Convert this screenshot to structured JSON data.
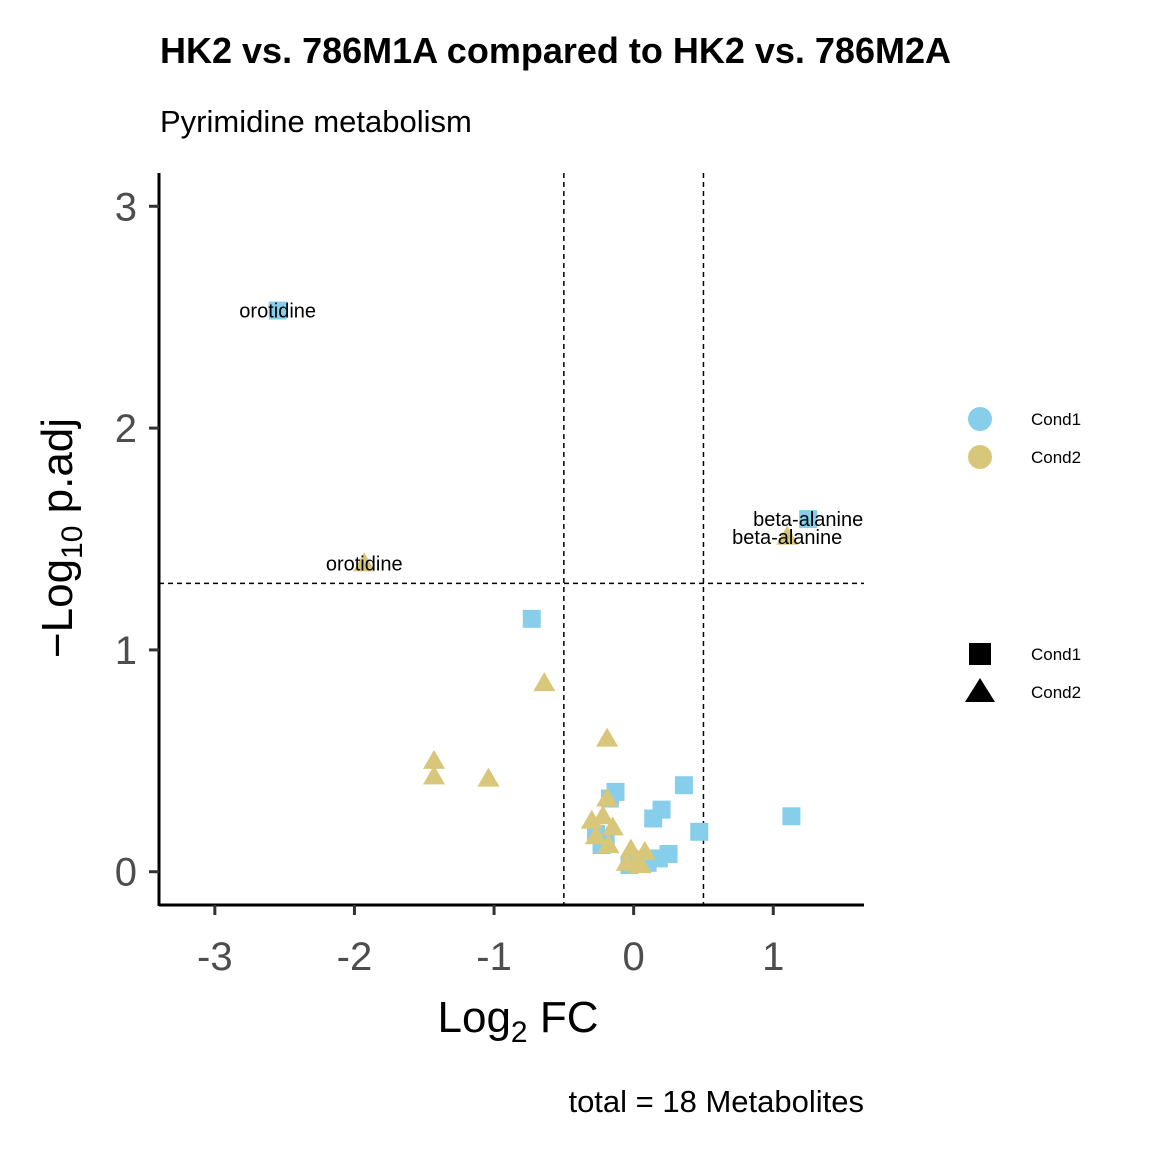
{
  "chart_data": {
    "type": "scatter",
    "title": "HK2 vs. 786M1A compared to HK2 vs. 786M2A",
    "subtitle": "Pyrimidine metabolism",
    "xlabel": {
      "prefix": "Log",
      "sub": "2",
      "suffix": " FC"
    },
    "ylabel": {
      "prefix": "−Log",
      "sub": "10",
      "suffix": " p.adj"
    },
    "xlim": [
      -3.4,
      1.65
    ],
    "ylim": [
      -0.15,
      3.15
    ],
    "x_ticks": [
      {
        "value": -3,
        "label": "-3"
      },
      {
        "value": -2,
        "label": "-2"
      },
      {
        "value": -1,
        "label": "-1"
      },
      {
        "value": 0,
        "label": "0"
      },
      {
        "value": 1,
        "label": "1"
      }
    ],
    "y_ticks": [
      {
        "value": 0,
        "label": "0"
      },
      {
        "value": 1,
        "label": "1"
      },
      {
        "value": 2,
        "label": "2"
      },
      {
        "value": 3,
        "label": "3"
      }
    ],
    "thresholds": {
      "x": [
        -0.5,
        0.5
      ],
      "y": 1.3
    },
    "caption": "total = 18 Metabolites",
    "colors": {
      "Cond1": "#87ceeb",
      "Cond2": "#d8c77a"
    },
    "legend_color": {
      "position": "right",
      "items": [
        {
          "label": "Cond1",
          "color": "#87ceeb"
        },
        {
          "label": "Cond2",
          "color": "#d8c77a"
        }
      ]
    },
    "legend_shape": {
      "position": "right",
      "items": [
        {
          "label": "Cond1",
          "shape": "square"
        },
        {
          "label": "Cond2",
          "shape": "triangle"
        }
      ]
    },
    "series": [
      {
        "name": "Cond1",
        "shape": "square",
        "color": "#87ceeb",
        "points": [
          {
            "x": -2.55,
            "y": 2.53,
            "label": "orotidine"
          },
          {
            "x": 1.25,
            "y": 1.59,
            "label": "beta-alanine"
          },
          {
            "x": -0.73,
            "y": 1.14
          },
          {
            "x": 1.13,
            "y": 0.25
          },
          {
            "x": 0.36,
            "y": 0.39
          },
          {
            "x": -0.13,
            "y": 0.36
          },
          {
            "x": -0.17,
            "y": 0.33
          },
          {
            "x": 0.2,
            "y": 0.28
          },
          {
            "x": 0.14,
            "y": 0.24
          },
          {
            "x": 0.47,
            "y": 0.18
          },
          {
            "x": -0.27,
            "y": 0.17
          },
          {
            "x": -0.2,
            "y": 0.14
          },
          {
            "x": -0.23,
            "y": 0.12
          },
          {
            "x": 0.25,
            "y": 0.08
          },
          {
            "x": 0.18,
            "y": 0.06
          },
          {
            "x": 0.07,
            "y": 0.05
          },
          {
            "x": -0.03,
            "y": 0.03
          },
          {
            "x": 0.1,
            "y": 0.04
          }
        ]
      },
      {
        "name": "Cond2",
        "shape": "triangle",
        "color": "#d8c77a",
        "points": [
          {
            "x": -1.93,
            "y": 1.39,
            "label": "orotidine"
          },
          {
            "x": 1.1,
            "y": 1.51,
            "label": "beta-alanine"
          },
          {
            "x": -0.64,
            "y": 0.85
          },
          {
            "x": -0.19,
            "y": 0.6
          },
          {
            "x": -1.43,
            "y": 0.5
          },
          {
            "x": -1.43,
            "y": 0.43
          },
          {
            "x": -1.04,
            "y": 0.42
          },
          {
            "x": -0.19,
            "y": 0.33
          },
          {
            "x": -0.22,
            "y": 0.25
          },
          {
            "x": -0.3,
            "y": 0.23
          },
          {
            "x": -0.15,
            "y": 0.2
          },
          {
            "x": -0.27,
            "y": 0.16
          },
          {
            "x": -0.18,
            "y": 0.12
          },
          {
            "x": -0.02,
            "y": 0.1
          },
          {
            "x": 0.08,
            "y": 0.09
          },
          {
            "x": 0.03,
            "y": 0.05
          },
          {
            "x": 0.05,
            "y": 0.03
          },
          {
            "x": -0.05,
            "y": 0.04
          }
        ]
      }
    ]
  }
}
